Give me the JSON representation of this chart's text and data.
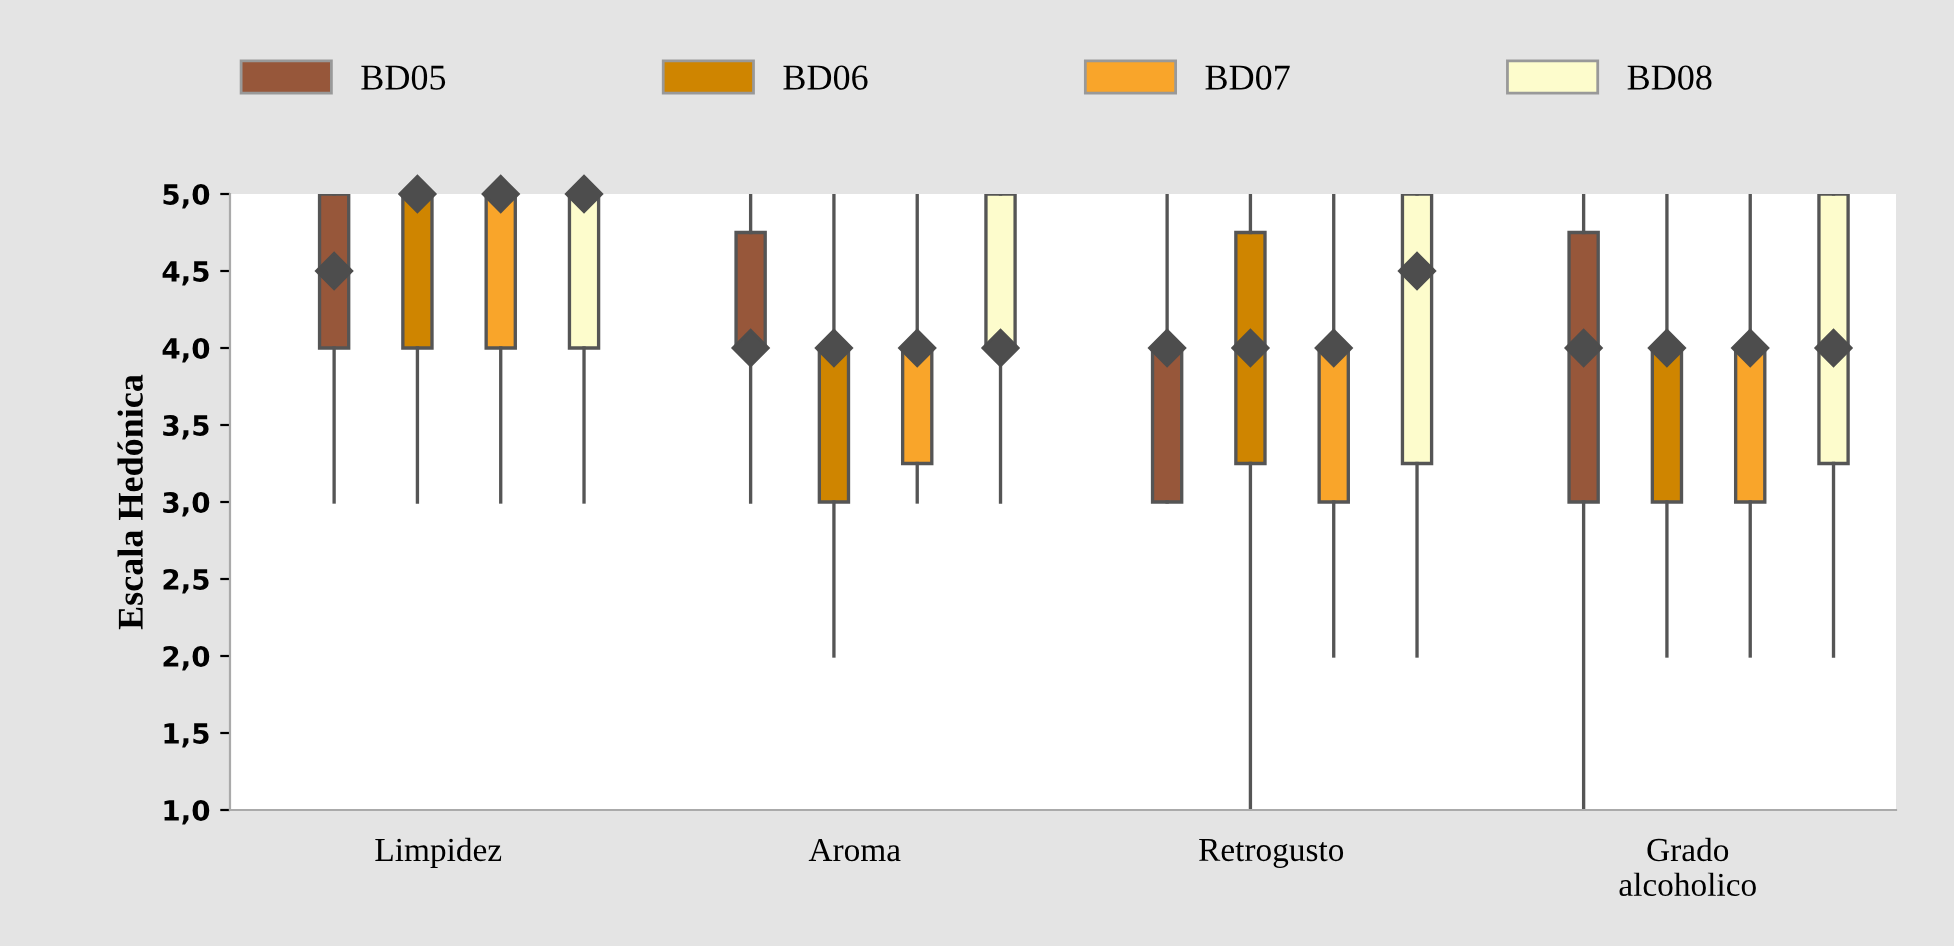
{
  "chart_data": {
    "type": "box",
    "ylabel": "Escala Hedónica",
    "categories": [
      "Limpidez",
      "Aroma",
      "Retrogusto",
      "Grado\nalcoholico"
    ],
    "ylim": [
      1,
      5
    ],
    "yticks": [
      {
        "value": 1,
        "label": "1,0"
      },
      {
        "value": 1.5,
        "label": "1,5"
      },
      {
        "value": 2,
        "label": "2,0"
      },
      {
        "value": 2.5,
        "label": "2,5"
      },
      {
        "value": 3,
        "label": "3,0"
      },
      {
        "value": 3.5,
        "label": "3,5"
      },
      {
        "value": 4,
        "label": "4,0"
      },
      {
        "value": 4.5,
        "label": "4,5"
      },
      {
        "value": 5,
        "label": "5,0"
      }
    ],
    "grid": false,
    "legend": "top",
    "series": [
      {
        "name": "BD05",
        "color": "#97573a",
        "boxes": [
          {
            "low": 3,
            "q1": 4,
            "median": 4.5,
            "mean": 4.5,
            "q3": 5,
            "high": 5
          },
          {
            "low": 3,
            "q1": 4,
            "median": 4,
            "mean": 4,
            "q3": 4.75,
            "high": 5
          },
          {
            "low": 3,
            "q1": 3,
            "median": 4,
            "mean": 4,
            "q3": 4,
            "high": 5
          },
          {
            "low": 1,
            "q1": 3,
            "median": 4,
            "mean": 4,
            "q3": 4.75,
            "high": 5
          }
        ]
      },
      {
        "name": "BD06",
        "color": "#cf8500",
        "boxes": [
          {
            "low": 3,
            "q1": 4,
            "median": 5,
            "mean": 5,
            "q3": 5,
            "high": 5
          },
          {
            "low": 2,
            "q1": 3,
            "median": 4,
            "mean": 4,
            "q3": 4,
            "high": 5
          },
          {
            "low": 1,
            "q1": 3.25,
            "median": 4,
            "mean": 4,
            "q3": 4.75,
            "high": 5
          },
          {
            "low": 2,
            "q1": 3,
            "median": 4,
            "mean": 4,
            "q3": 4,
            "high": 5
          }
        ]
      },
      {
        "name": "BD07",
        "color": "#f9a52a",
        "boxes": [
          {
            "low": 3,
            "q1": 4,
            "median": 5,
            "mean": 5,
            "q3": 5,
            "high": 5
          },
          {
            "low": 3,
            "q1": 3.25,
            "median": 4,
            "mean": 4,
            "q3": 4,
            "high": 5
          },
          {
            "low": 2,
            "q1": 3,
            "median": 4,
            "mean": 4,
            "q3": 4,
            "high": 5
          },
          {
            "low": 2,
            "q1": 3,
            "median": 4,
            "mean": 4,
            "q3": 4,
            "high": 5
          }
        ]
      },
      {
        "name": "BD08",
        "color": "#fdfccc",
        "boxes": [
          {
            "low": 3,
            "q1": 4,
            "median": 5,
            "mean": 5,
            "q3": 5,
            "high": 5
          },
          {
            "low": 3,
            "q1": 4,
            "median": 4,
            "mean": 4,
            "q3": 5,
            "high": 5
          },
          {
            "low": 2,
            "q1": 3.25,
            "median": 4.5,
            "mean": 4.5,
            "q3": 5,
            "high": 5
          },
          {
            "low": 2,
            "q1": 3.25,
            "median": 4,
            "mean": 4,
            "q3": 5,
            "high": 5
          }
        ]
      }
    ]
  }
}
